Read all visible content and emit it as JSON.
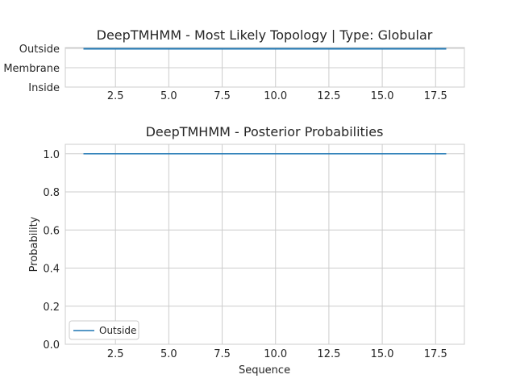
{
  "chart_data": [
    {
      "type": "line",
      "title": "DeepTMHMM - Most Likely Topology | Type: Globular",
      "xlabel": "",
      "ylabel": "",
      "xlim": [
        0.15,
        18.85
      ],
      "x_ticks": [
        2.5,
        5.0,
        7.5,
        10.0,
        12.5,
        15.0,
        17.5
      ],
      "x_tick_labels": [
        "2.5",
        "5.0",
        "7.5",
        "10.0",
        "12.5",
        "15.0",
        "17.5"
      ],
      "y_categories": [
        "Inside",
        "Membrane",
        "Outside"
      ],
      "grid": true,
      "series": [
        {
          "x": [
            1,
            18
          ],
          "y": [
            "Outside",
            "Outside"
          ],
          "color": "#1f77b4"
        }
      ]
    },
    {
      "type": "line",
      "title": "DeepTMHMM - Posterior Probabilities",
      "xlabel": "Sequence",
      "ylabel": "Probability",
      "xlim": [
        0.15,
        18.85
      ],
      "ylim": [
        0,
        1.05
      ],
      "x_ticks": [
        2.5,
        5.0,
        7.5,
        10.0,
        12.5,
        15.0,
        17.5
      ],
      "x_tick_labels": [
        "2.5",
        "5.0",
        "7.5",
        "10.0",
        "12.5",
        "15.0",
        "17.5"
      ],
      "y_ticks": [
        0.0,
        0.2,
        0.4,
        0.6,
        0.8,
        1.0
      ],
      "y_tick_labels": [
        "0.0",
        "0.2",
        "0.4",
        "0.6",
        "0.8",
        "1.0"
      ],
      "grid": true,
      "legend": "lower-left",
      "series": [
        {
          "name": "Outside",
          "x": [
            1,
            18
          ],
          "y": [
            1.0,
            1.0
          ],
          "color": "#1f77b4"
        }
      ]
    }
  ],
  "colors": {
    "grid": "#cccccc",
    "spine": "#cccccc",
    "text": "#262626"
  }
}
